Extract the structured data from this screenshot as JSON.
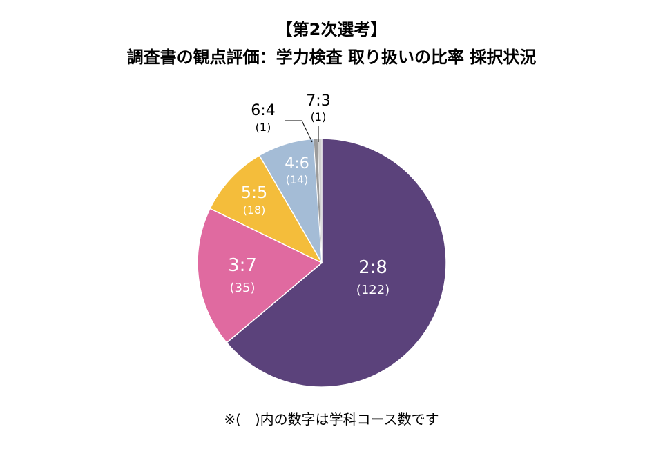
{
  "header": {
    "line1": "【第2次選考】",
    "line2": "調査書の観点評価：学力検査 取り扱いの比率 採択状況"
  },
  "note": "※(　)内の数字は学科コース数です",
  "chart_data": {
    "type": "pie",
    "title": "調査書の観点評価：学力検査 取り扱いの比率 採択状況",
    "slices": [
      {
        "label": "2:8",
        "count_label": "(122)",
        "value": 122,
        "color": "#5b427b",
        "text_color": "#ffffff"
      },
      {
        "label": "3:7",
        "count_label": "(35)",
        "value": 35,
        "color": "#e06aa0",
        "text_color": "#ffffff"
      },
      {
        "label": "5:5",
        "count_label": "(18)",
        "value": 18,
        "color": "#f4bd3b",
        "text_color": "#ffffff"
      },
      {
        "label": "4:6",
        "count_label": "(14)",
        "value": 14,
        "color": "#a4bcd6",
        "text_color": "#ffffff"
      },
      {
        "label": "6:4",
        "count_label": "(1)",
        "value": 1,
        "color": "#9b9b9b",
        "text_color": "#000000"
      },
      {
        "label": "7:3",
        "count_label": "(1)",
        "value": 1,
        "color": "#cfcfcf",
        "text_color": "#000000"
      }
    ],
    "start": "12 o'clock",
    "direction": "clockwise",
    "legend": "none"
  }
}
